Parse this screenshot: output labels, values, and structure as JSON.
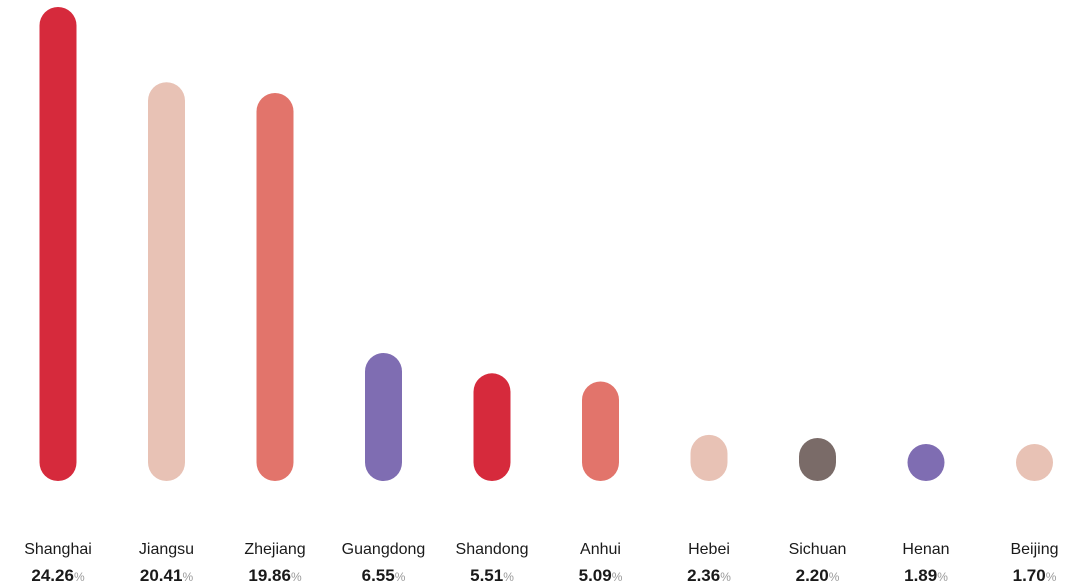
{
  "chart_data": {
    "type": "bar",
    "orientation": "vertical",
    "bar_style": "rounded-pill",
    "categories": [
      "Shanghai",
      "Jiangsu",
      "Zhejiang",
      "Guangdong",
      "Shandong",
      "Anhui",
      "Hebei",
      "Sichuan",
      "Henan",
      "Beijing"
    ],
    "values": [
      24.26,
      20.41,
      19.86,
      6.55,
      5.51,
      5.09,
      2.36,
      2.2,
      1.89,
      1.7
    ],
    "value_labels": [
      "24.26",
      "20.41",
      "19.86",
      "6.55",
      "5.51",
      "5.09",
      "2.36",
      "2.20",
      "1.89",
      "1.70"
    ],
    "unit": "%",
    "colors": [
      "#d62a3c",
      "#e8c2b5",
      "#e2746b",
      "#7f6db2",
      "#d62a3c",
      "#e2746b",
      "#e8c2b5",
      "#7a6b68",
      "#7f6db2",
      "#e8c2b5"
    ],
    "title": "",
    "xlabel": "",
    "ylabel": "",
    "grid": false,
    "legend": "none"
  }
}
